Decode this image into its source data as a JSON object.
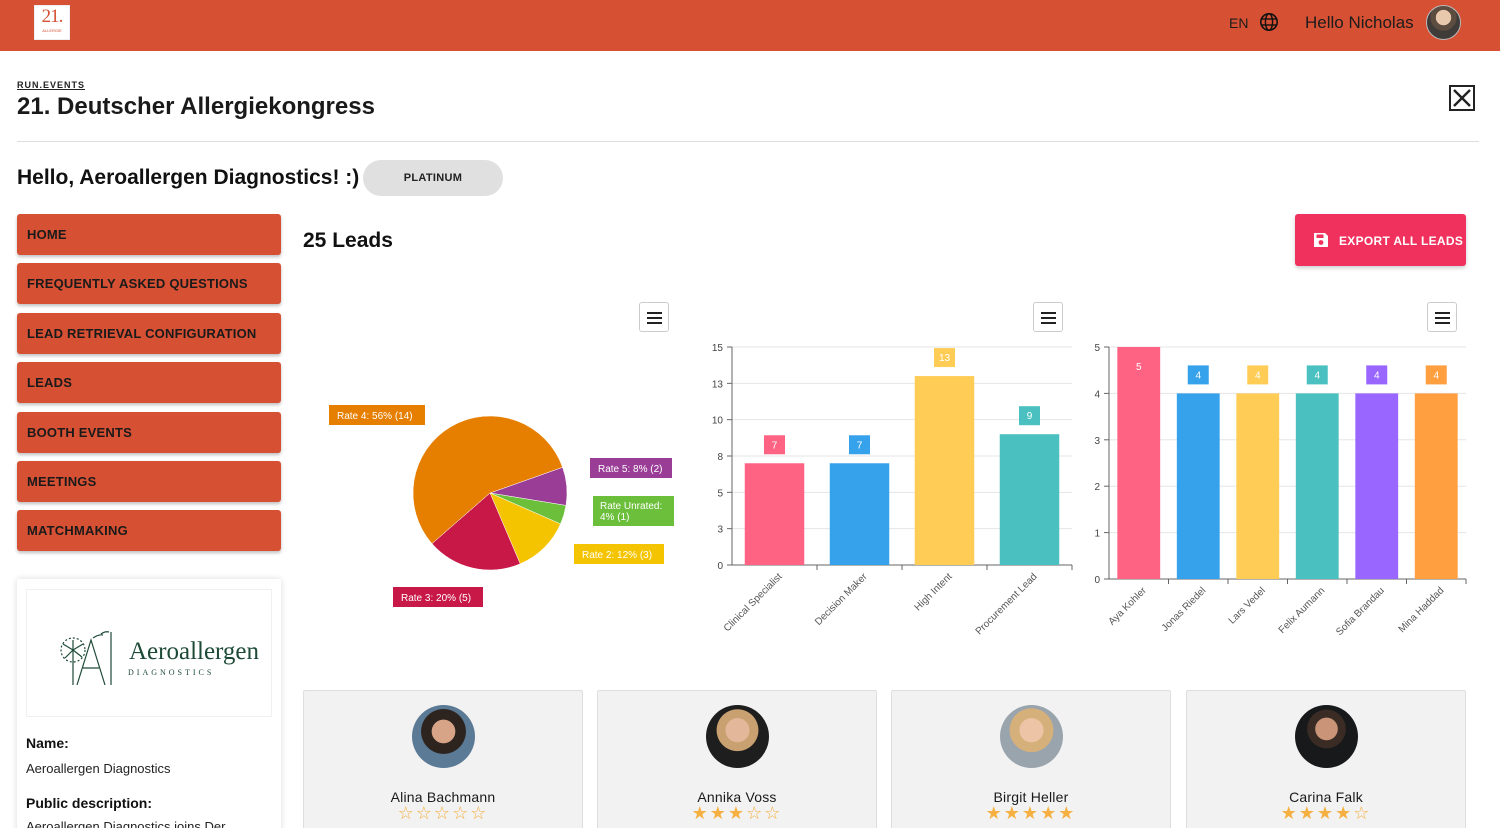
{
  "topbar": {
    "logo_number": "21.",
    "logo_small": "ALLERGIE",
    "language": "EN",
    "user_greeting": "Hello Nicholas"
  },
  "header": {
    "brand": "RUN.EVENTS",
    "title": "21. Deutscher Allergiekongress"
  },
  "greeting": "Hello, Aeroallergen Diagnostics! :)",
  "tier_badge": "PLATINUM",
  "nav": {
    "items": [
      {
        "label": "HOME"
      },
      {
        "label": "FREQUENTLY ASKED QUESTIONS"
      },
      {
        "label": "LEAD RETRIEVAL CONFIGURATION"
      },
      {
        "label": "LEADS"
      },
      {
        "label": "BOOTH EVENTS"
      },
      {
        "label": "MEETINGS"
      },
      {
        "label": "MATCHMAKING"
      }
    ]
  },
  "company": {
    "logo_name": "Aeroallergen",
    "logo_sub": "DIAGNOSTICS",
    "name_label": "Name:",
    "name_value": "Aeroallergen Diagnostics",
    "description_label": "Public description:",
    "description_value": "Aeroallergen Diagnostics joins Der"
  },
  "main": {
    "leads_count": "25 Leads",
    "export_label": "EXPORT ALL LEADS"
  },
  "colors": {
    "topbar": "#d65034",
    "nav": "#d65034",
    "export": "#f0315d"
  },
  "chart_data": [
    {
      "type": "pie",
      "slices": [
        {
          "label": "Rate 4: 56% (14)",
          "name": "Rate 4",
          "percent": 56,
          "count": 14,
          "color": "#e67e00"
        },
        {
          "label": "Rate 5: 8% (2)",
          "name": "Rate 5",
          "percent": 8,
          "count": 2,
          "color": "#9a3d96"
        },
        {
          "label": "Rate Unrated: 4% (1)",
          "name": "Rate Unrated",
          "percent": 4,
          "count": 1,
          "color": "#6cbf3a"
        },
        {
          "label": "Rate 2: 12% (3)",
          "name": "Rate 2",
          "percent": 12,
          "count": 3,
          "color": "#f5c400"
        },
        {
          "label": "Rate 3: 20% (5)",
          "name": "Rate 3",
          "percent": 20,
          "count": 5,
          "color": "#c81848"
        }
      ]
    },
    {
      "type": "bar",
      "categories": [
        "Clinical Specialist",
        "Decision Maker",
        "High Intent",
        "Procurement Lead"
      ],
      "values": [
        7,
        7,
        13,
        9
      ],
      "colors": [
        "#ff6384",
        "#36a2eb",
        "#ffcd56",
        "#4bc0c0"
      ],
      "yticks": [
        "0",
        "3",
        "5",
        "8",
        "10",
        "13",
        "15"
      ],
      "ylim": [
        0,
        15
      ]
    },
    {
      "type": "bar",
      "categories": [
        "Aya Kohler",
        "Jonas Riedel",
        "Lars Vedel",
        "Felix Aumann",
        "Sofia Brandau",
        "Mina Haddad"
      ],
      "values": [
        5,
        4,
        4,
        4,
        4,
        4
      ],
      "colors": [
        "#ff6384",
        "#36a2eb",
        "#ffcd56",
        "#4bc0c0",
        "#9966ff",
        "#ff9f40"
      ],
      "yticks": [
        "0",
        "1",
        "2",
        "3",
        "4",
        "5"
      ],
      "ylim": [
        0,
        5
      ]
    }
  ],
  "leads": [
    {
      "name": "Alina Bachmann",
      "stars": "☆☆☆☆☆",
      "rating": 0
    },
    {
      "name": "Annika Voss",
      "stars": "★★★☆☆",
      "rating": 3
    },
    {
      "name": "Birgit Heller",
      "stars": "★★★★★",
      "rating": 5
    },
    {
      "name": "Carina Falk",
      "stars": "★★★★☆",
      "rating": 4
    }
  ]
}
